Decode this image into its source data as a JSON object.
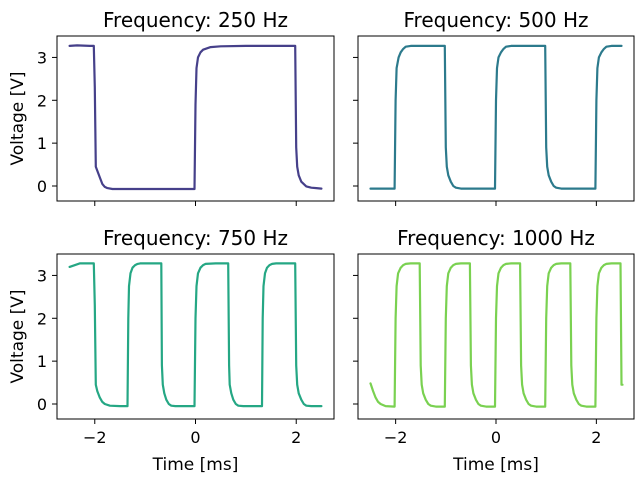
{
  "chart_data": [
    {
      "type": "line",
      "title": "Frequency: 250 Hz",
      "xlabel": "",
      "ylabel": "Voltage [V]",
      "xlim": [
        -2.75,
        2.75
      ],
      "ylim": [
        -0.35,
        3.5
      ],
      "xticks": [
        -2,
        0,
        2
      ],
      "yticks": [
        0,
        1,
        2,
        3
      ],
      "xtick_labels_shown": false,
      "ytick_labels_shown": true,
      "color": "#46408a",
      "frequency_hz": 250,
      "series": [
        {
          "x": [
            -2.5,
            -2.35,
            -2.1,
            -2.02,
            -2.0,
            -1.98,
            -1.9,
            -1.85,
            -1.8,
            -1.75,
            -1.65,
            -1.5,
            -1.0,
            -0.5,
            -0.02,
            0.0,
            0.02,
            0.05,
            0.1,
            0.15,
            0.3,
            0.5,
            1.0,
            1.5,
            1.98,
            2.0,
            2.02,
            2.05,
            2.1,
            2.2,
            2.3,
            2.4,
            2.5
          ],
          "y": [
            3.27,
            3.28,
            3.27,
            3.27,
            2.3,
            0.45,
            0.2,
            0.05,
            -0.02,
            -0.05,
            -0.07,
            -0.07,
            -0.07,
            -0.07,
            -0.07,
            1.9,
            2.75,
            3.0,
            3.12,
            3.18,
            3.24,
            3.26,
            3.27,
            3.27,
            3.27,
            0.9,
            0.45,
            0.25,
            0.1,
            -0.01,
            -0.04,
            -0.05,
            -0.06
          ]
        }
      ]
    },
    {
      "type": "line",
      "title": "Frequency: 500 Hz",
      "xlabel": "",
      "ylabel": "",
      "xlim": [
        -2.75,
        2.75
      ],
      "ylim": [
        -0.35,
        3.5
      ],
      "xticks": [
        -2,
        0,
        2
      ],
      "yticks": [
        0,
        1,
        2,
        3
      ],
      "xtick_labels_shown": false,
      "ytick_labels_shown": false,
      "color": "#2c7a8c",
      "frequency_hz": 500,
      "series": [
        {
          "x": [
            -2.5,
            -2.3,
            -2.02,
            -2.0,
            -1.98,
            -1.94,
            -1.9,
            -1.85,
            -1.8,
            -1.7,
            -1.5,
            -1.2,
            -1.02,
            -1.0,
            -0.98,
            -0.95,
            -0.9,
            -0.85,
            -0.8,
            -0.7,
            -0.5,
            -0.2,
            -0.02,
            0.0,
            0.02,
            0.05,
            0.1,
            0.15,
            0.2,
            0.3,
            0.5,
            0.8,
            0.98,
            1.0,
            1.02,
            1.05,
            1.1,
            1.15,
            1.2,
            1.3,
            1.5,
            1.8,
            1.98,
            2.0,
            2.02,
            2.05,
            2.1,
            2.15,
            2.2,
            2.3,
            2.5
          ],
          "y": [
            -0.06,
            -0.06,
            -0.06,
            2.0,
            2.75,
            3.0,
            3.12,
            3.2,
            3.25,
            3.27,
            3.27,
            3.27,
            3.27,
            0.9,
            0.45,
            0.25,
            0.1,
            0.0,
            -0.04,
            -0.06,
            -0.06,
            -0.06,
            -0.06,
            2.0,
            2.75,
            3.0,
            3.12,
            3.2,
            3.25,
            3.27,
            3.27,
            3.27,
            3.27,
            0.9,
            0.45,
            0.25,
            0.1,
            0.0,
            -0.04,
            -0.06,
            -0.06,
            -0.06,
            -0.06,
            2.0,
            2.75,
            3.0,
            3.12,
            3.2,
            3.25,
            3.27,
            3.27
          ]
        }
      ]
    },
    {
      "type": "line",
      "title": "Frequency: 750 Hz",
      "xlabel": "Time [ms]",
      "ylabel": "Voltage [V]",
      "xlim": [
        -2.75,
        2.75
      ],
      "ylim": [
        -0.35,
        3.5
      ],
      "xticks": [
        -2,
        0,
        2
      ],
      "yticks": [
        0,
        1,
        2,
        3
      ],
      "xtick_labels_shown": true,
      "ytick_labels_shown": true,
      "color": "#25a784",
      "frequency_hz": 750,
      "series": [
        {
          "x": [
            -2.5,
            -2.3,
            -2.02,
            -2.0,
            -1.98,
            -1.95,
            -1.9,
            -1.85,
            -1.8,
            -1.7,
            -1.5,
            -1.35,
            -1.335,
            -1.32,
            -1.29,
            -1.25,
            -1.2,
            -1.15,
            -1.1,
            -0.9,
            -0.68,
            -0.667,
            -0.65,
            -0.62,
            -0.58,
            -0.53,
            -0.48,
            -0.4,
            -0.2,
            -0.02,
            0.0,
            0.02,
            0.05,
            0.1,
            0.15,
            0.2,
            0.4,
            0.65,
            0.667,
            0.68,
            0.71,
            0.75,
            0.8,
            0.85,
            0.95,
            1.15,
            1.32,
            1.335,
            1.35,
            1.38,
            1.42,
            1.47,
            1.52,
            1.6,
            1.8,
            1.98,
            2.0,
            2.02,
            2.05,
            2.1,
            2.15,
            2.2,
            2.3,
            2.5
          ],
          "y": [
            3.2,
            3.28,
            3.28,
            2.3,
            0.45,
            0.3,
            0.15,
            0.05,
            0.0,
            -0.04,
            -0.05,
            -0.05,
            2.0,
            2.75,
            3.05,
            3.18,
            3.24,
            3.27,
            3.28,
            3.28,
            3.28,
            0.9,
            0.45,
            0.25,
            0.1,
            0.0,
            -0.04,
            -0.05,
            -0.05,
            -0.05,
            2.0,
            2.75,
            3.05,
            3.18,
            3.24,
            3.27,
            3.28,
            3.28,
            0.9,
            0.45,
            0.25,
            0.1,
            0.0,
            -0.04,
            -0.05,
            -0.05,
            -0.05,
            2.0,
            2.75,
            3.05,
            3.18,
            3.24,
            3.27,
            3.28,
            3.28,
            3.28,
            0.9,
            0.45,
            0.25,
            0.1,
            0.0,
            -0.04,
            -0.05,
            -0.05
          ]
        }
      ]
    },
    {
      "type": "line",
      "title": "Frequency: 1000 Hz",
      "xlabel": "Time [ms]",
      "ylabel": "",
      "xlim": [
        -2.75,
        2.75
      ],
      "ylim": [
        -0.35,
        3.5
      ],
      "xticks": [
        -2,
        0,
        2
      ],
      "yticks": [
        0,
        1,
        2,
        3
      ],
      "xtick_labels_shown": true,
      "ytick_labels_shown": false,
      "color": "#7ad151",
      "frequency_hz": 1000,
      "series": [
        {
          "x": [
            -2.5,
            -2.45,
            -2.4,
            -2.35,
            -2.3,
            -2.2,
            -2.02,
            -2.0,
            -1.98,
            -1.95,
            -1.9,
            -1.85,
            -1.8,
            -1.7,
            -1.52,
            -1.5,
            -1.48,
            -1.45,
            -1.4,
            -1.35,
            -1.3,
            -1.2,
            -1.02,
            -1.0,
            -0.98,
            -0.95,
            -0.9,
            -0.85,
            -0.8,
            -0.7,
            -0.52,
            -0.5,
            -0.48,
            -0.45,
            -0.4,
            -0.35,
            -0.3,
            -0.2,
            -0.02,
            0.0,
            0.02,
            0.05,
            0.1,
            0.15,
            0.2,
            0.3,
            0.48,
            0.5,
            0.52,
            0.55,
            0.6,
            0.65,
            0.7,
            0.8,
            0.98,
            1.0,
            1.02,
            1.05,
            1.1,
            1.15,
            1.2,
            1.3,
            1.48,
            1.5,
            1.52,
            1.55,
            1.6,
            1.65,
            1.7,
            1.8,
            1.98,
            2.0,
            2.02,
            2.05,
            2.1,
            2.15,
            2.2,
            2.3,
            2.48,
            2.5,
            2.52
          ],
          "y": [
            0.48,
            0.3,
            0.15,
            0.05,
            0.0,
            -0.05,
            -0.06,
            2.0,
            2.75,
            3.05,
            3.18,
            3.24,
            3.27,
            3.28,
            3.28,
            0.9,
            0.45,
            0.25,
            0.1,
            0.0,
            -0.04,
            -0.06,
            -0.06,
            2.0,
            2.75,
            3.05,
            3.18,
            3.24,
            3.27,
            3.28,
            3.28,
            0.9,
            0.45,
            0.25,
            0.1,
            0.0,
            -0.04,
            -0.06,
            -0.06,
            2.0,
            2.75,
            3.05,
            3.18,
            3.24,
            3.27,
            3.28,
            3.28,
            0.9,
            0.45,
            0.25,
            0.1,
            0.0,
            -0.04,
            -0.06,
            -0.06,
            2.0,
            2.75,
            3.05,
            3.18,
            3.24,
            3.27,
            3.28,
            3.28,
            0.9,
            0.45,
            0.25,
            0.1,
            0.0,
            -0.04,
            -0.06,
            -0.06,
            2.0,
            2.75,
            3.05,
            3.18,
            3.24,
            3.27,
            3.28,
            3.28,
            0.45,
            0.45
          ]
        }
      ]
    }
  ]
}
